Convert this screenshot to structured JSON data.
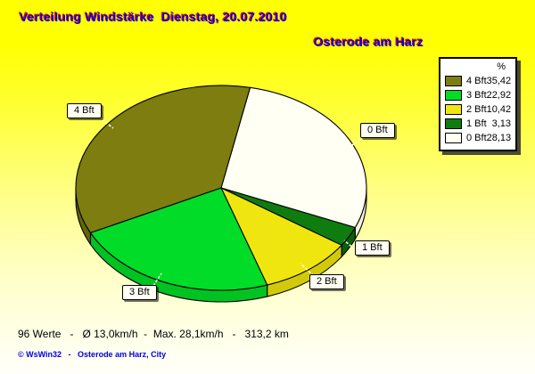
{
  "window": {
    "app": "WsWin32 wind strength distribution chart"
  },
  "title": "Verteilung Windstärke  Dienstag, 20.07.2010",
  "subtitle": "Osterode am Harz",
  "legend": {
    "header": "%"
  },
  "footer": {
    "stats": "96 Werte   -   Ø 13,0km/h  -  Max. 28,1km/h   -   313,2 km",
    "copyright": "© WsWin32   -   Osterode am Harz, City"
  },
  "colors": {
    "title_text": "#0000E0",
    "title_shadow": "#E60000",
    "background_top": "#FFFF00",
    "background_bottom": "#FFFFF8",
    "callout_background": "#FFFFF4",
    "outline": "#000000"
  },
  "chart_data": {
    "type": "pie",
    "style": "3d",
    "title": "Verteilung Windstärke Dienstag, 20.07.2010",
    "location": "Osterode am Harz",
    "unit": "%",
    "legend_position": "top-right",
    "start_angle_deg_clockwise_from_top": 11.5,
    "clockwise_draw_order": [
      "0 Bft",
      "1 Bft",
      "2 Bft",
      "3 Bft",
      "4 Bft"
    ],
    "slices": [
      {
        "label": "4 Bft",
        "value": 35.42,
        "value_label": "35,42",
        "color": "#7D7D10",
        "rim_color": "#646408"
      },
      {
        "label": "3 Bft",
        "value": 22.92,
        "value_label": "22,92",
        "color": "#00DC28",
        "rim_color": "#00C322"
      },
      {
        "label": "2 Bft",
        "value": 10.42,
        "value_label": "10,42",
        "color": "#F0E60F",
        "rim_color": "#D2C90A"
      },
      {
        "label": "1 Bft",
        "value": 3.13,
        "value_label": "3,13",
        "color": "#0E7C0E",
        "rim_color": "#0A5F0A"
      },
      {
        "label": "0 Bft",
        "value": 28.13,
        "value_label": "28,13",
        "color": "#FFFFF4",
        "rim_color": "#F2F2DE"
      }
    ],
    "totals": {
      "n_values": 96,
      "avg_kmh": "13,0",
      "max_kmh": "28,1",
      "distance_km": "313,2"
    }
  }
}
